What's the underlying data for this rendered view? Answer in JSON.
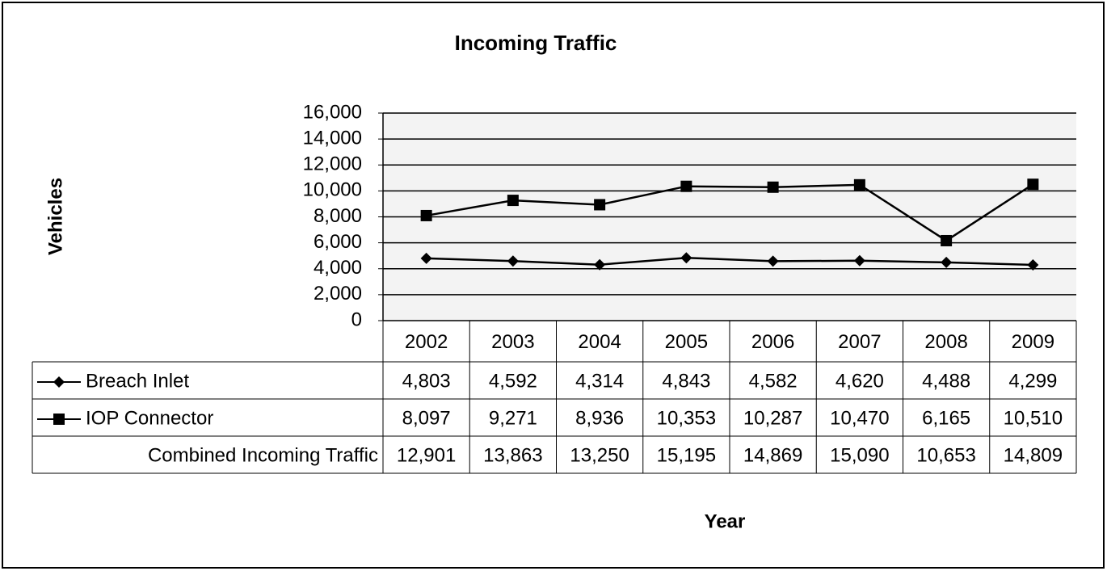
{
  "chart_data": {
    "type": "line",
    "title": "Incoming Traffic",
    "y_label": "Vehicles",
    "x_label": "Year",
    "categories": [
      "2002",
      "2003",
      "2004",
      "2005",
      "2006",
      "2007",
      "2008",
      "2009"
    ],
    "series": [
      {
        "name": "Breach Inlet",
        "color": "#000000",
        "marker": "diamond",
        "values": [
          4803,
          4592,
          4314,
          4843,
          4582,
          4620,
          4488,
          4299
        ],
        "value_labels": [
          "4,803",
          "4,592",
          "4,314",
          "4,843",
          "4,582",
          "4,620",
          "4,488",
          "4,299"
        ]
      },
      {
        "name": "IOP Connector",
        "color": "#000000",
        "marker": "square",
        "values": [
          8097,
          9271,
          8936,
          10353,
          10287,
          10470,
          6165,
          10510
        ],
        "value_labels": [
          "8,097",
          "9,271",
          "8,936",
          "10,353",
          "10,287",
          "10,470",
          "6,165",
          "10,510"
        ]
      }
    ],
    "table_only_series": [
      {
        "name": "Combined Incoming Traffic",
        "values": [
          12901,
          13863,
          13250,
          15195,
          14869,
          15090,
          10653,
          14809
        ],
        "value_labels": [
          "12,901",
          "13,863",
          "13,250",
          "15,195",
          "14,869",
          "15,090",
          "10,653",
          "14,809"
        ]
      }
    ],
    "ylim": [
      0,
      16000
    ],
    "yticks": [
      0,
      {
        "value": 2000,
        "label": "2,000"
      },
      {
        "value": 4000,
        "label": "4,000"
      },
      {
        "value": 6000,
        "label": "6,000"
      },
      {
        "value": 8000,
        "label": "8,000"
      },
      {
        "value": 10000,
        "label": "10,000"
      },
      {
        "value": 12000,
        "label": "12,000"
      },
      {
        "value": 14000,
        "label": "14,000"
      },
      {
        "value": 16000,
        "label": "16,000"
      }
    ],
    "grid": true
  }
}
